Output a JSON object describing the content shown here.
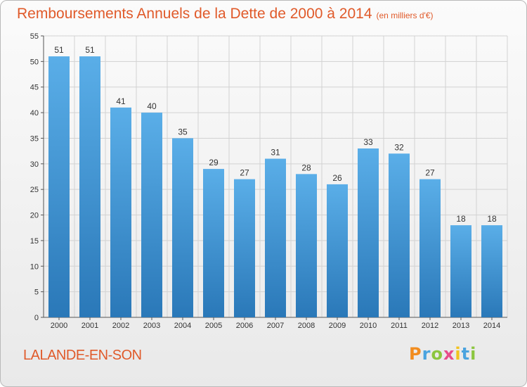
{
  "header": {
    "title": "Remboursements Annuels de la Dette de 2000 à 2014",
    "subtitle": "(en milliers d'€)"
  },
  "footer": {
    "commune": "LALANDE-EN-SON",
    "logo_letters": [
      "P",
      "r",
      "o",
      "x",
      "i",
      "t",
      "i"
    ]
  },
  "colors": {
    "bar_top": "#5aaee8",
    "bar_bottom": "#2a78b8",
    "title": "#e05a2a"
  },
  "chart_data": {
    "type": "bar",
    "categories": [
      "2000",
      "2001",
      "2002",
      "2003",
      "2004",
      "2005",
      "2006",
      "2007",
      "2008",
      "2009",
      "2010",
      "2011",
      "2012",
      "2013",
      "2014"
    ],
    "values": [
      51,
      51,
      41,
      40,
      35,
      29,
      27,
      31,
      28,
      26,
      33,
      32,
      27,
      18,
      18
    ],
    "title": "Remboursements Annuels de la Dette de 2000 à 2014",
    "subtitle": "(en milliers d'€)",
    "ylim": [
      0,
      55
    ],
    "yticks": [
      0,
      5,
      10,
      15,
      20,
      25,
      30,
      35,
      40,
      45,
      50,
      55
    ],
    "grid": true
  }
}
